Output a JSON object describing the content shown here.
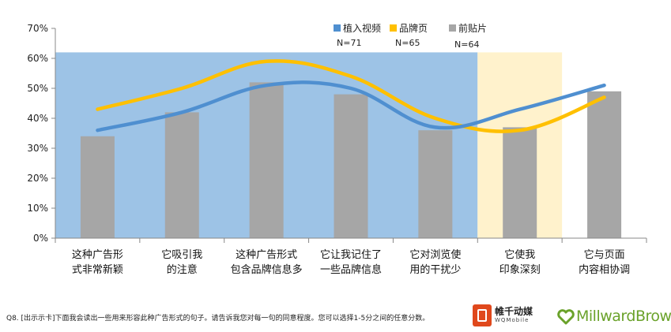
{
  "chart_data": {
    "type": "bar",
    "categories": [
      "这种广告形\n式非常新颖",
      "它吸引我\n的注意",
      "这种广告形式\n包含品牌信息多",
      "它让我记住了\n一些品牌信息",
      "它对浏览使\n用的干扰少",
      "它使我\n印象深刻",
      "它与页面\n内容相协调"
    ],
    "series": [
      {
        "name": "植入视频",
        "kind": "line",
        "color": "#4f8fd0",
        "values": [
          0.36,
          0.42,
          0.51,
          0.5,
          0.37,
          0.43,
          0.51
        ]
      },
      {
        "name": "品牌页",
        "kind": "line",
        "color": "#ffc000",
        "values": [
          0.43,
          0.5,
          0.59,
          0.54,
          0.4,
          0.36,
          0.47
        ]
      },
      {
        "name": "前贴片",
        "kind": "bar",
        "color": "#a6a6a6",
        "values": [
          0.34,
          0.42,
          0.52,
          0.48,
          0.36,
          0.37,
          0.49
        ]
      }
    ],
    "sample_sizes": [
      "N=71",
      "N=65",
      "N=64"
    ],
    "y_ticks": [
      "0%",
      "10%",
      "20%",
      "30%",
      "40%",
      "50%",
      "60%",
      "70%"
    ],
    "ylim": [
      0,
      0.7
    ],
    "highlight_regions": [
      {
        "categories": [
          0,
          4
        ],
        "color": "#9dc3e6",
        "top_value": 0.62
      },
      {
        "categories": [
          5,
          5
        ],
        "color": "#fff2cc",
        "top_value": 0.62
      }
    ],
    "legend_position": "top-center"
  },
  "footnote": "Q8. [出示示卡]下面我会读出一些用来形容此种广告形式的句子。请告诉我您对每一句的同意程度。您可以选择1-5分之间的任意分数。",
  "logos": {
    "wq_cn": "帷千动媒",
    "wq_en": "WQMobile",
    "mb": "MillwardBrown"
  }
}
